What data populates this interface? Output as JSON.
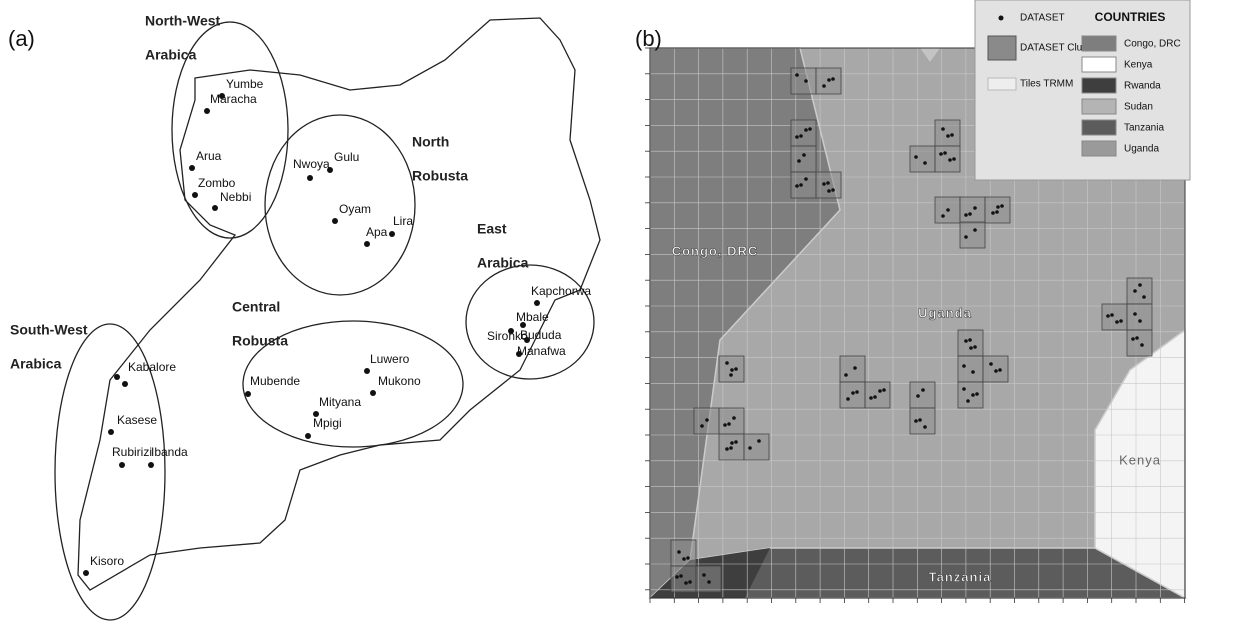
{
  "panel_a": {
    "label": "(a)",
    "regions": [
      {
        "lines": [
          "North-West",
          "Arabica"
        ]
      },
      {
        "lines": [
          "North",
          "Robusta"
        ]
      },
      {
        "lines": [
          "East",
          "Arabica"
        ]
      },
      {
        "lines": [
          "Central",
          "Robusta"
        ]
      },
      {
        "lines": [
          "South-West",
          "Arabica"
        ]
      }
    ],
    "towns": [
      "Yumbe",
      "Maracha",
      "Arua",
      "Zombo",
      "Nebbi",
      "Nwoya",
      "Gulu",
      "Oyam",
      "Lira",
      "Apa",
      "Kapchorwa",
      "Mbale",
      "Sironko",
      "Bududa",
      "Manafwa",
      "Luwero",
      "Mukono",
      "Mubende",
      "Mityana",
      "Mpigi",
      "Kabalore",
      "Kasese",
      "Rubirizi",
      "Ibanda",
      "Kisoro"
    ]
  },
  "panel_b": {
    "label": "(b)",
    "legend": {
      "items": [
        "DATASET",
        "DATASET Cluster",
        "Tiles TRMM"
      ],
      "countries_title": "COUNTRIES",
      "countries": [
        "Congo, DRC",
        "Kenya",
        "Rwanda",
        "Sudan",
        "Tanzania",
        "Uganda"
      ]
    },
    "map_labels": [
      "Congo, DRC",
      "Uganda",
      "Kenya",
      "Tanzania"
    ]
  }
}
